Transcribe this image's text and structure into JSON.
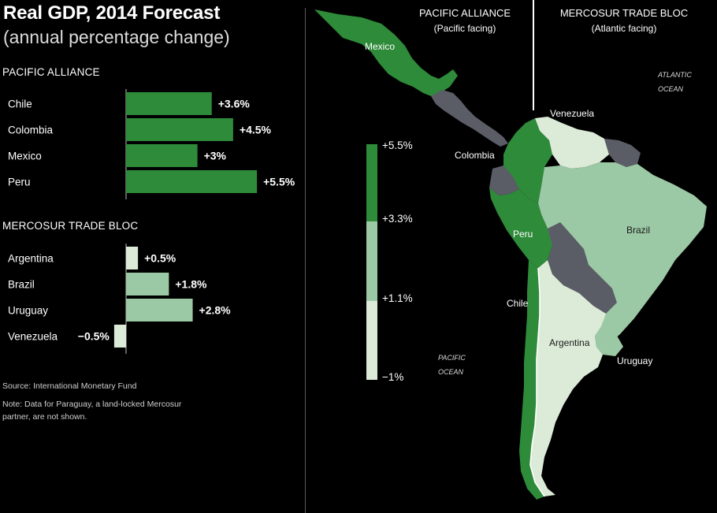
{
  "title": "Real GDP, 2014 Forecast",
  "subtitle": "(annual percentage change)",
  "source": "Source: International Monetary Fund",
  "note": "Note: Data for Paraguay, a land-locked Mercosur partner, are not shown.",
  "chart_data": {
    "type": "bar",
    "orientation": "horizontal",
    "groups": [
      {
        "name": "PACIFIC ALLIANCE",
        "categories": [
          "Chile",
          "Colombia",
          "Mexico",
          "Peru"
        ],
        "values": [
          3.6,
          4.5,
          3.0,
          5.5
        ],
        "labels": [
          "+3.6%",
          "+4.5%",
          "+3%",
          "+5.5%"
        ]
      },
      {
        "name": "MERCOSUR TRADE BLOC",
        "categories": [
          "Argentina",
          "Brazil",
          "Uruguay",
          "Venezuela"
        ],
        "values": [
          0.5,
          1.8,
          2.8,
          -0.5
        ],
        "labels": [
          "+0.5%",
          "+1.8%",
          "+2.8%",
          "−0.5%"
        ]
      }
    ],
    "color_scale": {
      "breaks": [
        "+5.5%",
        "+3.3%",
        "+1.1%",
        "−1%"
      ],
      "colors": [
        "#2e8b3a",
        "#9cc9a5",
        "#dcebd8"
      ]
    },
    "colors": {
      "pacific": "#2e8b3a",
      "mid": "#9cc9a5",
      "light": "#dcebd8",
      "other": "#5b5d66"
    }
  },
  "map": {
    "pacific_header": "PACIFIC ALLIANCE",
    "pacific_sub": "(Pacific facing)",
    "mercosur_header": "MERCOSUR TRADE BLOC",
    "mercosur_sub": "(Atlantic facing)",
    "atlantic_label": [
      "ATLANTIC",
      "OCEAN"
    ],
    "pacific_ocean_label": [
      "PACIFIC",
      "OCEAN"
    ],
    "country_labels": {
      "mexico": "Mexico",
      "colombia": "Colombia",
      "peru": "Peru",
      "chile": "Chile",
      "venezuela": "Venezuela",
      "brazil": "Brazil",
      "argentina": "Argentina",
      "uruguay": "Uruguay"
    }
  }
}
